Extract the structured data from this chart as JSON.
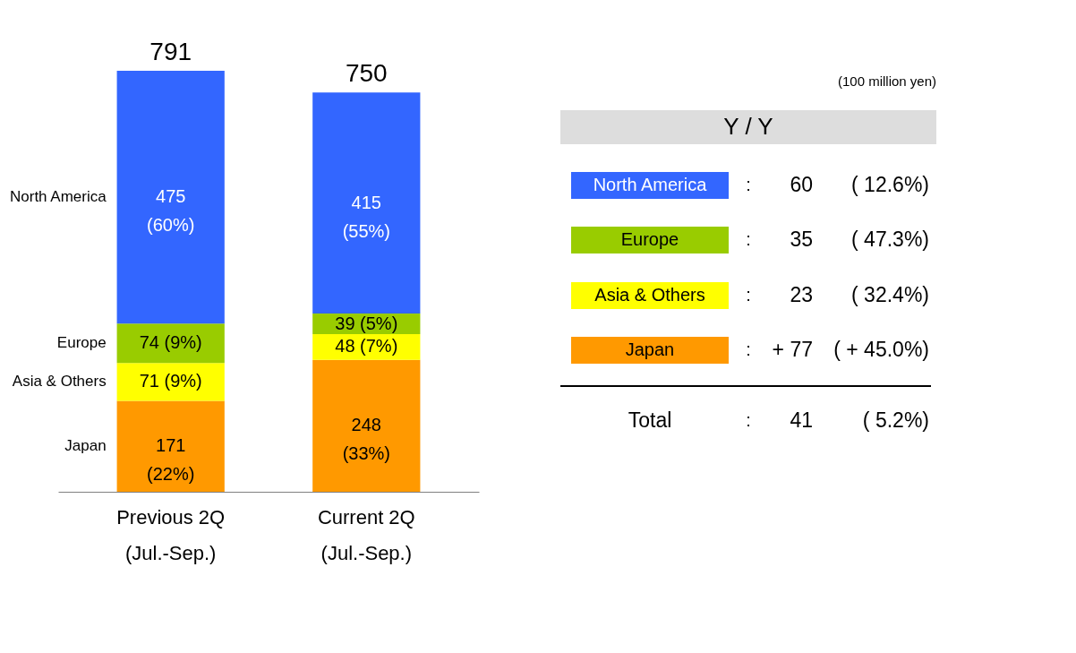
{
  "chart_data": [
    {
      "type": "bar",
      "stacked": true,
      "categories": [
        "Previous 2Q\n(Jul.-Sep.)",
        "Current 2Q\n(Jul.-Sep.)"
      ],
      "series": [
        {
          "name": "Japan",
          "color": "#ff9900",
          "values": [
            171,
            248
          ],
          "value_labels": [
            "171\n(22%)",
            "248\n(33%)"
          ]
        },
        {
          "name": "Asia & Others",
          "color": "#ffff00",
          "values": [
            71,
            48
          ],
          "value_labels": [
            "71  (9%)",
            "48  (7%)"
          ]
        },
        {
          "name": "Europe",
          "color": "#99cc00",
          "values": [
            74,
            39
          ],
          "value_labels": [
            "74 (9%)",
            "39  (5%)"
          ]
        },
        {
          "name": "North America",
          "color": "#3366ff",
          "values": [
            475,
            415
          ],
          "value_labels": [
            "475\n(60%)",
            "415\n(55%)"
          ]
        }
      ],
      "totals": [
        "791",
        "750"
      ]
    },
    {
      "type": "other",
      "title": "Y / Y",
      "annotations": [
        "(100 million yen)",
        "North America",
        ":",
        "60",
        "(    12.6%)",
        "Europe",
        ":",
        "35",
        "(    47.3%)",
        "Asia & Others",
        ":",
        "23",
        "(    32.4%)",
        "Japan",
        ":",
        "+ 77",
        "( + 45.0%)",
        "Total",
        ":",
        "41",
        "(      5.2%)"
      ]
    }
  ]
}
